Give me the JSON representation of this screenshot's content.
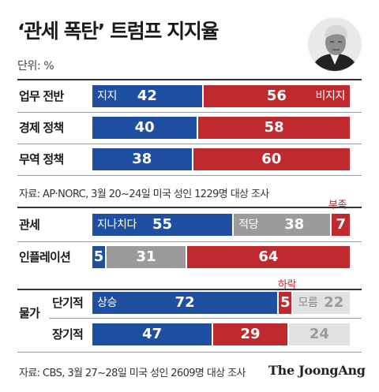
{
  "title": "‘관세 폭탄’ 트럼프 지지율",
  "unit": "단위: %",
  "colors": {
    "approve": "#1f4fa0",
    "disapprove": "#be2a2d",
    "neutral": "#9b9b9b",
    "unknown": "#e1e1e1"
  },
  "sources": {
    "ap": "자료: AP·NORC, 3월 20~24일 미국 성인 1229명 대상 조사",
    "cbs": "자료: CBS, 3월 27~28일 미국 성인 2609명 대상 조사"
  },
  "brand": "The JoongAng",
  "group_label": "물가",
  "chart_data": [
    {
      "type": "bar",
      "stacked": true,
      "orientation": "horizontal",
      "categories": [
        "업무 전반",
        "경제 정책",
        "무역 정책"
      ],
      "series": [
        {
          "name": "지지",
          "values": [
            42,
            40,
            38
          ]
        },
        {
          "name": "비지지",
          "values": [
            56,
            58,
            60
          ]
        }
      ]
    },
    {
      "type": "bar",
      "stacked": true,
      "orientation": "horizontal",
      "categories": [
        "관세",
        "인플레이션"
      ],
      "series": [
        {
          "name": "지나치다",
          "values": [
            55,
            5
          ]
        },
        {
          "name": "적당",
          "values": [
            38,
            31
          ]
        },
        {
          "name": "부족",
          "values": [
            7,
            64
          ]
        }
      ]
    },
    {
      "type": "bar",
      "stacked": true,
      "orientation": "horizontal",
      "group": "물가",
      "categories": [
        "단기적",
        "장기적"
      ],
      "series": [
        {
          "name": "상승",
          "values": [
            72,
            47
          ]
        },
        {
          "name": "하락",
          "values": [
            5,
            29
          ]
        },
        {
          "name": "모름",
          "values": [
            22,
            24
          ]
        }
      ]
    }
  ]
}
